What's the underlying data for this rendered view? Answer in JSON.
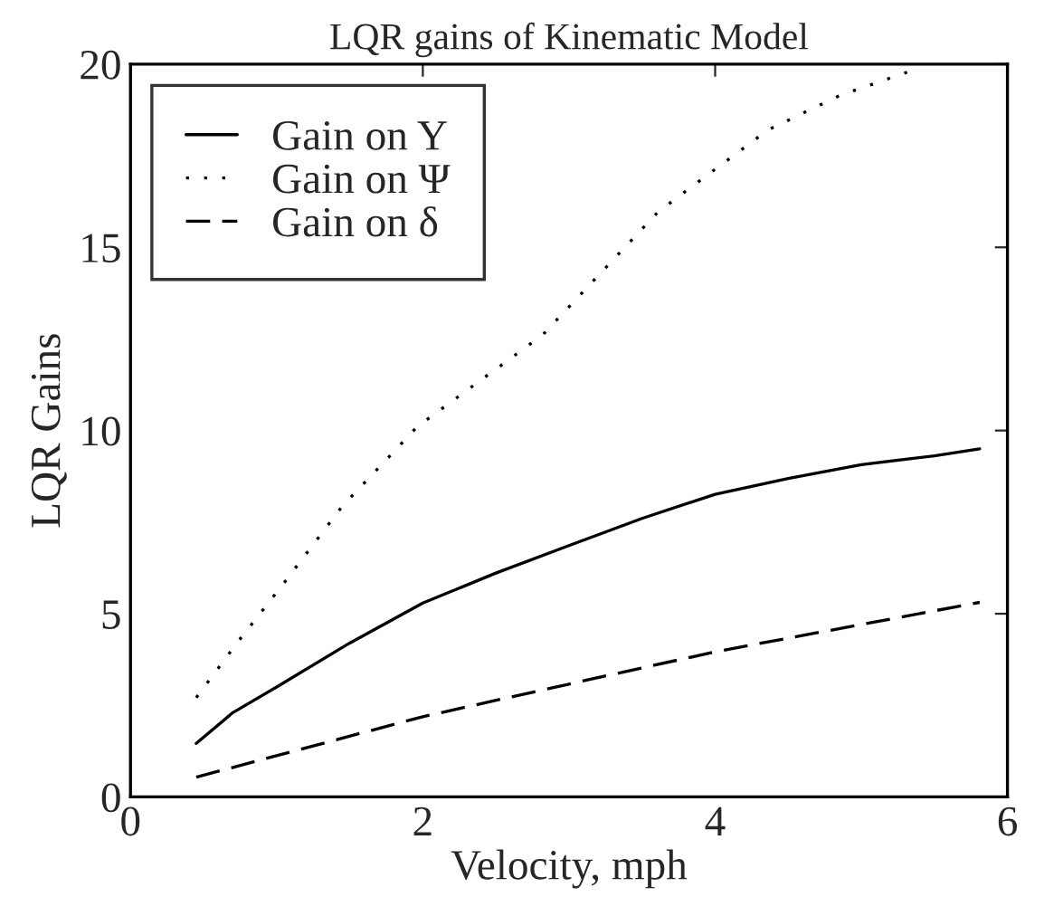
{
  "chart_data": {
    "type": "line",
    "title": "LQR gains of Kinematic Model",
    "xlabel": "Velocity, mph",
    "ylabel": "LQR Gains",
    "xlim": [
      0,
      6
    ],
    "ylim": [
      0,
      20
    ],
    "xticks": [
      0,
      2,
      4,
      6
    ],
    "yticks": [
      0,
      5,
      10,
      15,
      20
    ],
    "grid": false,
    "legend": "top left",
    "series": [
      {
        "name": "Gain on Y",
        "color": "#000000",
        "line_style": "solid",
        "x": [
          0.45,
          0.7,
          1.0,
          1.5,
          2.0,
          2.5,
          3.0,
          3.5,
          4.0,
          4.5,
          5.0,
          5.5,
          5.81
        ],
        "values": [
          1.46,
          2.3,
          3.0,
          4.2,
          5.29,
          6.11,
          6.86,
          7.6,
          8.26,
          8.69,
          9.07,
          9.31,
          9.5
        ]
      },
      {
        "name": "Gain on Ψ",
        "color": "#000000",
        "line_style": "dotted",
        "x": [
          0.45,
          0.73,
          1.06,
          1.45,
          1.74,
          1.96,
          2.82,
          3.61,
          4.36,
          4.85,
          5.4
        ],
        "values": [
          2.71,
          4.21,
          5.89,
          7.94,
          9.16,
          10.1,
          12.61,
          15.97,
          18.2,
          19.14,
          19.9
        ]
      },
      {
        "name": "Gain on δ",
        "color": "#000000",
        "line_style": "dashed",
        "x": [
          0.45,
          2.0,
          3.0,
          4.0,
          5.81
        ],
        "values": [
          0.54,
          2.19,
          3.08,
          3.96,
          5.31
        ]
      }
    ]
  }
}
